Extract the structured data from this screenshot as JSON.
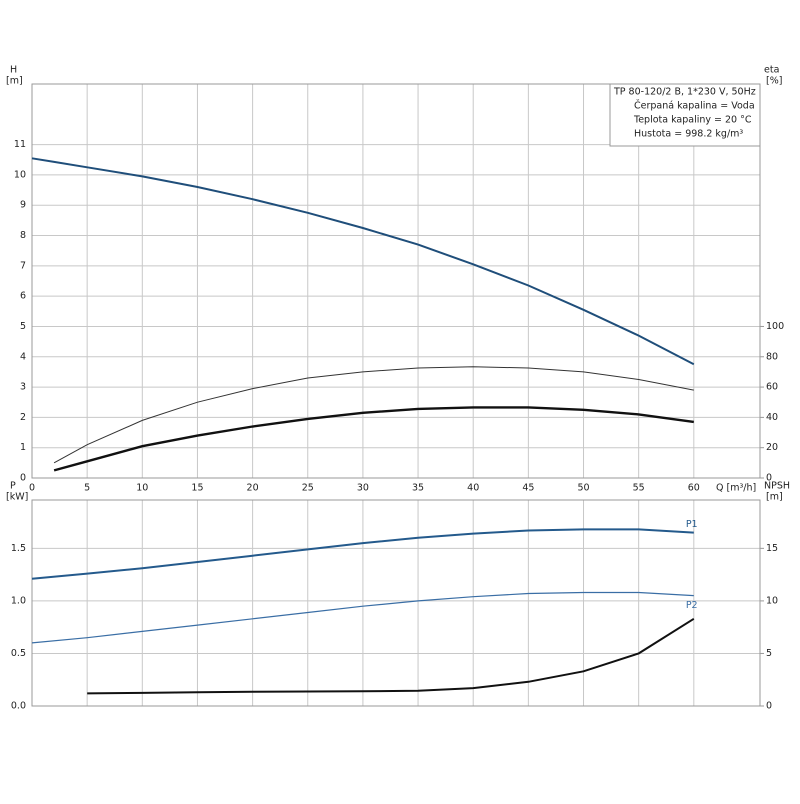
{
  "chart_data": [
    {
      "type": "line",
      "y_label": "H",
      "y_unit": "[m]",
      "y2_label": "eta",
      "y2_unit": "[%]",
      "x_label": "Q [m³/h]",
      "info": [
        "TP 80-120/2 B, 1*230 V, 50Hz",
        "Čerpaná kapalina = Voda",
        "Teplota kapaliny = 20 °C",
        "Hustota = 998.2 kg/m³"
      ],
      "x": [
        0,
        2,
        5,
        10,
        15,
        20,
        25,
        30,
        35,
        40,
        45,
        50,
        55,
        60
      ],
      "xlim": [
        0,
        66
      ],
      "xticks": [
        0,
        5,
        10,
        15,
        20,
        25,
        30,
        35,
        40,
        45,
        50,
        55,
        60
      ],
      "ylim": [
        0,
        13
      ],
      "yticks": [
        0,
        1,
        2,
        3,
        4,
        5,
        6,
        7,
        8,
        9,
        10,
        11
      ],
      "y2lim": [
        0,
        260
      ],
      "y2ticks": [
        0,
        20,
        40,
        60,
        80,
        100
      ],
      "grid": true,
      "series": [
        {
          "color": "#1f4e7a",
          "width": 2,
          "values": [
            10.55,
            10.43,
            10.25,
            9.95,
            9.6,
            9.2,
            8.75,
            8.25,
            7.7,
            7.05,
            6.35,
            5.55,
            4.7,
            3.75
          ]
        },
        {
          "color": "#333333",
          "width": 1,
          "axis": "y2",
          "values": [
            null,
            10,
            22,
            38,
            50,
            59,
            66,
            70,
            72.6,
            73.4,
            72.6,
            70,
            65,
            58
          ]
        },
        {
          "color": "#111111",
          "width": 2.4,
          "axis": "y2",
          "values": [
            null,
            5,
            11,
            21,
            28,
            34,
            39,
            43,
            45.6,
            46.6,
            46.6,
            45,
            42,
            37
          ]
        }
      ]
    },
    {
      "type": "line",
      "y_label": "P",
      "y_unit": "[kW]",
      "y2_label": "NPSH",
      "y2_unit": "[m]",
      "x": [
        0,
        5,
        10,
        15,
        20,
        25,
        30,
        35,
        40,
        45,
        50,
        55,
        60
      ],
      "xlim": [
        0,
        66
      ],
      "xticks": [
        0,
        5,
        10,
        15,
        20,
        25,
        30,
        35,
        40,
        45,
        50,
        55,
        60
      ],
      "ylim": [
        0,
        1.96
      ],
      "yticks": [
        {
          "value": 0,
          "label": "0.0"
        },
        0.5,
        {
          "value": 1,
          "label": "1.0"
        },
        1.5
      ],
      "y2lim": [
        0,
        19.6
      ],
      "y2ticks": [
        0,
        5,
        10,
        15
      ],
      "grid": true,
      "series": [
        {
          "name": "P1",
          "color": "#245a8c",
          "width": 2,
          "values": [
            1.21,
            1.26,
            1.31,
            1.37,
            1.43,
            1.49,
            1.55,
            1.6,
            1.64,
            1.67,
            1.68,
            1.68,
            1.65
          ]
        },
        {
          "name": "P2",
          "color": "#3a6ea5",
          "width": 1.2,
          "values": [
            0.6,
            0.65,
            0.71,
            0.77,
            0.83,
            0.89,
            0.95,
            1.0,
            1.04,
            1.07,
            1.08,
            1.08,
            1.05
          ]
        },
        {
          "color": "#111111",
          "width": 2,
          "axis": "y2",
          "values": [
            null,
            1.2,
            1.25,
            1.3,
            1.35,
            1.38,
            1.4,
            1.45,
            1.7,
            2.3,
            3.3,
            5.0,
            8.3
          ]
        }
      ]
    }
  ]
}
